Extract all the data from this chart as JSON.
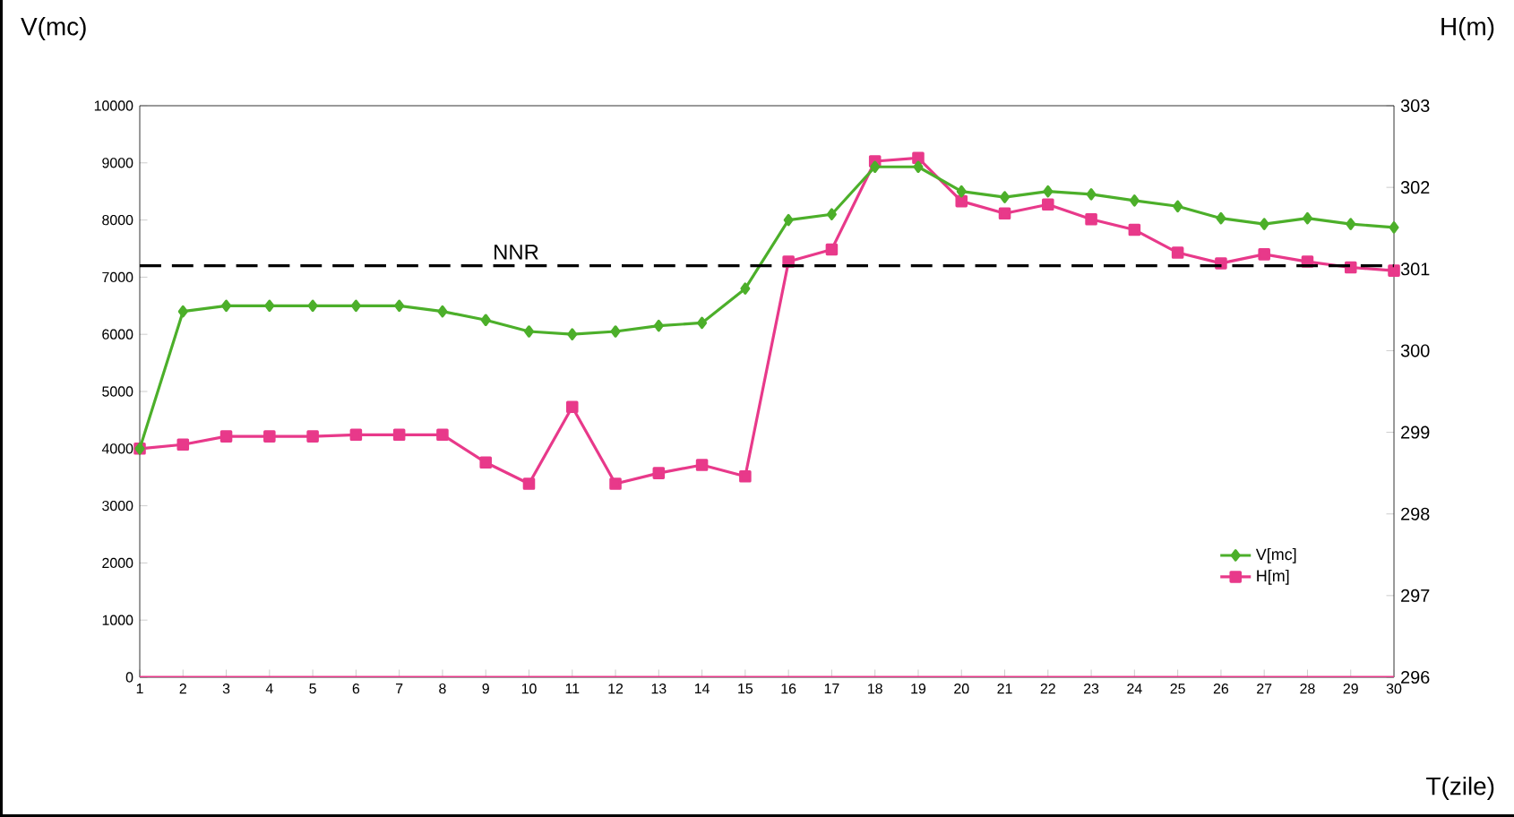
{
  "chart_data": {
    "type": "line",
    "xlabel": "T(zile)",
    "ylabel": "V(mc)",
    "y2label": "H(m)",
    "x": [
      1,
      2,
      3,
      4,
      5,
      6,
      7,
      8,
      9,
      10,
      11,
      12,
      13,
      14,
      15,
      16,
      17,
      18,
      19,
      20,
      21,
      22,
      23,
      24,
      25,
      26,
      27,
      28,
      29,
      30
    ],
    "series": [
      {
        "name": "V[mc]",
        "color": "#4caf2a",
        "marker": "diamond",
        "values": [
          4000,
          6400,
          6500,
          6500,
          6500,
          6500,
          6500,
          6400,
          6250,
          6050,
          6000,
          6050,
          6150,
          6200,
          6800,
          8000,
          8100,
          8930,
          8930,
          8500,
          8400,
          8500,
          8450,
          8340,
          8240,
          8030,
          7930,
          8030,
          7930,
          7870
        ]
      },
      {
        "name": "H[m]",
        "color": "#e8398a",
        "marker": "square",
        "axis": "y2",
        "values": [
          298.8,
          298.85,
          298.95,
          298.95,
          298.95,
          298.97,
          298.97,
          298.97,
          298.63,
          298.37,
          299.31,
          298.37,
          298.5,
          298.6,
          298.46,
          301.09,
          301.24,
          302.32,
          302.36,
          301.83,
          301.68,
          301.79,
          301.61,
          301.48,
          301.2,
          301.07,
          301.18,
          301.09,
          301.02,
          300.98
        ]
      }
    ],
    "xlim": [
      1,
      30
    ],
    "xticks": [
      1,
      2,
      3,
      4,
      5,
      6,
      7,
      8,
      9,
      10,
      11,
      12,
      13,
      14,
      15,
      16,
      17,
      18,
      19,
      20,
      21,
      22,
      23,
      24,
      25,
      26,
      27,
      28,
      29,
      30
    ],
    "ylim": [
      0,
      10000
    ],
    "yticks": [
      0,
      1000,
      2000,
      3000,
      4000,
      5000,
      6000,
      7000,
      8000,
      9000,
      10000
    ],
    "y2lim": [
      296,
      303
    ],
    "y2ticks": [
      296,
      297,
      298,
      299,
      300,
      301,
      302,
      303
    ],
    "ref_lines": [
      {
        "axis": "y",
        "value": 7200,
        "label": "NNR",
        "color": "#000000",
        "line_style": "dashed"
      },
      {
        "axis": "y",
        "value": 0,
        "color": "#e8398a",
        "line_style": "solid"
      }
    ],
    "legend": "bottom right",
    "grid": false
  }
}
